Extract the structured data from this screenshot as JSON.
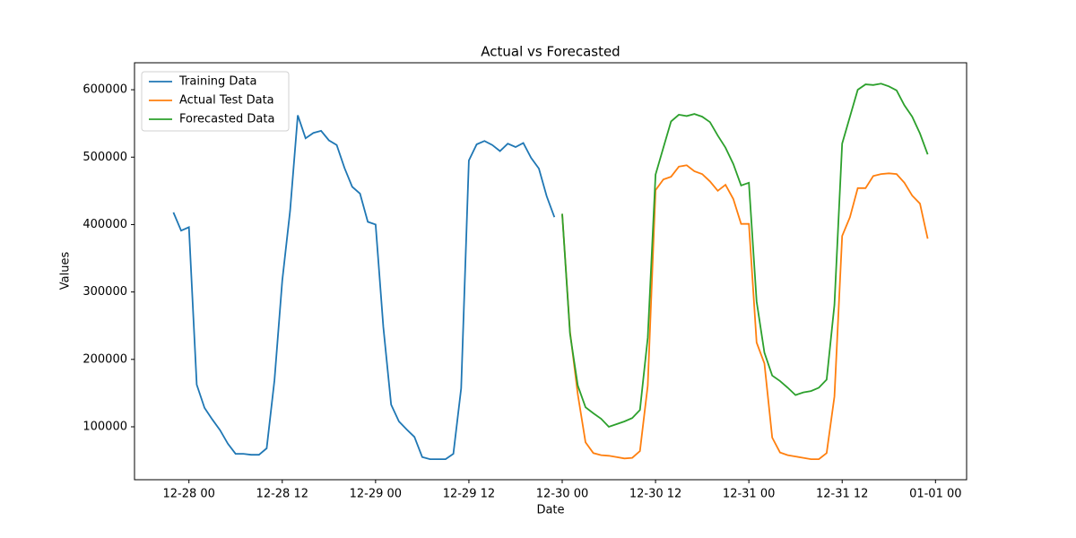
{
  "chart_data": {
    "type": "line",
    "title": "Actual vs Forecasted",
    "x_label": "Date",
    "y_label": "Values",
    "xlim": [
      "12-27 17",
      "01-01 04"
    ],
    "xticks": [
      "12-28 00",
      "12-28 12",
      "12-29 00",
      "12-29 12",
      "12-30 00",
      "12-30 12",
      "12-31 00",
      "12-31 12",
      "01-01 00"
    ],
    "ylim": [
      21500,
      640000
    ],
    "yticks": [
      100000,
      200000,
      300000,
      400000,
      500000,
      600000
    ],
    "grid": false,
    "legend": "upper left",
    "series": [
      {
        "name": "Training Data",
        "color": "#1f77b4",
        "x": [
          "12-27 22",
          "12-27 23",
          "12-28 00",
          "12-28 01",
          "12-28 02",
          "12-28 03",
          "12-28 04",
          "12-28 05",
          "12-28 06",
          "12-28 07",
          "12-28 08",
          "12-28 09",
          "12-28 10",
          "12-28 11",
          "12-28 12",
          "12-28 13",
          "12-28 14",
          "12-28 15",
          "12-28 16",
          "12-28 17",
          "12-28 18",
          "12-28 19",
          "12-28 20",
          "12-28 21",
          "12-28 22",
          "12-28 23",
          "12-29 00",
          "12-29 01",
          "12-29 02",
          "12-29 03",
          "12-29 04",
          "12-29 05",
          "12-29 06",
          "12-29 07",
          "12-29 08",
          "12-29 09",
          "12-29 10",
          "12-29 11",
          "12-29 12",
          "12-29 13",
          "12-29 14",
          "12-29 15",
          "12-29 16",
          "12-29 17",
          "12-29 18",
          "12-29 19",
          "12-29 20",
          "12-29 21",
          "12-29 22",
          "12-29 23"
        ],
        "values": [
          418000,
          391000,
          396000,
          162500,
          128000,
          111000,
          95000,
          75000,
          60000,
          60000,
          58500,
          58500,
          68000,
          169000,
          317000,
          420000,
          562000,
          528000,
          536000,
          539000,
          525000,
          518000,
          484000,
          456000,
          446000,
          404000,
          400000,
          248000,
          133000,
          108000,
          96000,
          85000,
          55000,
          52000,
          52000,
          52000,
          60000,
          157000,
          495000,
          519000,
          524000,
          518000,
          509000,
          520000,
          515000,
          521000,
          499000,
          483000,
          442000,
          411000
        ]
      },
      {
        "name": "Actual Test Data",
        "color": "#ff7f0e",
        "x": [
          "12-30 00",
          "12-30 01",
          "12-30 02",
          "12-30 03",
          "12-30 04",
          "12-30 05",
          "12-30 06",
          "12-30 07",
          "12-30 08",
          "12-30 09",
          "12-30 10",
          "12-30 11",
          "12-30 12",
          "12-30 13",
          "12-30 14",
          "12-30 15",
          "12-30 16",
          "12-30 17",
          "12-30 18",
          "12-30 19",
          "12-30 20",
          "12-30 21",
          "12-30 22",
          "12-30 23",
          "12-31 00",
          "12-31 01",
          "12-31 02",
          "12-31 03",
          "12-31 04",
          "12-31 05",
          "12-31 06",
          "12-31 07",
          "12-31 08",
          "12-31 09",
          "12-31 10",
          "12-31 11",
          "12-31 12",
          "12-31 13",
          "12-31 14",
          "12-31 15",
          "12-31 16",
          "12-31 17",
          "12-31 18",
          "12-31 19",
          "12-31 20",
          "12-31 21",
          "12-31 22",
          "12-31 23"
        ],
        "values": [
          416000,
          241000,
          148000,
          77000,
          61000,
          58000,
          57000,
          55000,
          53000,
          54000,
          64000,
          161000,
          451000,
          467000,
          471000,
          486000,
          488000,
          479000,
          475000,
          464000,
          450000,
          459000,
          438000,
          401000,
          401000,
          225000,
          194000,
          84000,
          62000,
          58000,
          56000,
          54000,
          52000,
          52000,
          61000,
          145000,
          383000,
          411000,
          454000,
          454000,
          472000,
          475000,
          476000,
          475000,
          462000,
          443000,
          431000,
          379000
        ]
      },
      {
        "name": "Forecasted Data",
        "color": "#2ca02c",
        "x": [
          "12-30 00",
          "12-30 01",
          "12-30 02",
          "12-30 03",
          "12-30 04",
          "12-30 05",
          "12-30 06",
          "12-30 07",
          "12-30 08",
          "12-30 09",
          "12-30 10",
          "12-30 11",
          "12-30 12",
          "12-30 13",
          "12-30 14",
          "12-30 15",
          "12-30 16",
          "12-30 17",
          "12-30 18",
          "12-30 19",
          "12-30 20",
          "12-30 21",
          "12-30 22",
          "12-30 23",
          "12-31 00",
          "12-31 01",
          "12-31 02",
          "12-31 03",
          "12-31 04",
          "12-31 05",
          "12-31 06",
          "12-31 07",
          "12-31 08",
          "12-31 09",
          "12-31 10",
          "12-31 11",
          "12-31 12",
          "12-31 13",
          "12-31 14",
          "12-31 15",
          "12-31 16",
          "12-31 17",
          "12-31 18",
          "12-31 19",
          "12-31 20",
          "12-31 21",
          "12-31 22",
          "12-31 23"
        ],
        "values": [
          416000,
          238000,
          161000,
          129000,
          120000,
          112000,
          100000,
          104000,
          108000,
          113000,
          125000,
          232000,
          474000,
          514000,
          553000,
          563000,
          561000,
          564000,
          560000,
          552000,
          532000,
          514000,
          490000,
          458000,
          462000,
          286000,
          210000,
          176000,
          168000,
          158000,
          147000,
          151000,
          153000,
          158000,
          170000,
          281000,
          520000,
          560000,
          600000,
          608000,
          607000,
          609000,
          605000,
          599000,
          577000,
          560000,
          535000,
          504000
        ]
      }
    ]
  }
}
